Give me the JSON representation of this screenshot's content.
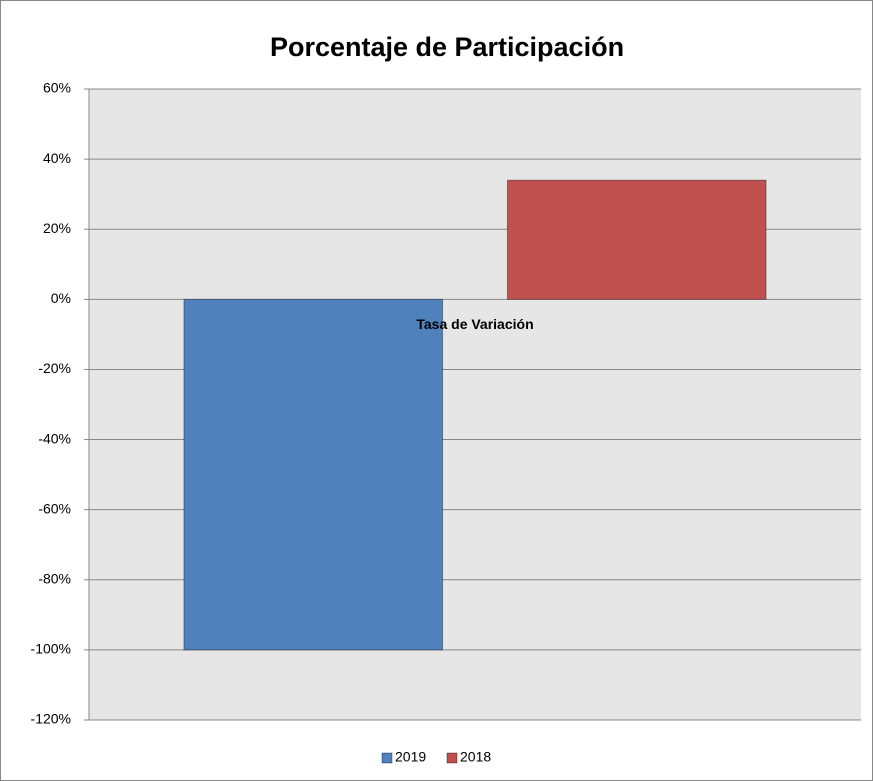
{
  "chart_data": {
    "type": "bar",
    "title": "Porcentaje de Participación",
    "categories": [
      "Tasa de Variación"
    ],
    "series": [
      {
        "name": "2019",
        "color": "#4f81bd",
        "values": [
          -100
        ]
      },
      {
        "name": "2018",
        "color": "#c0504d",
        "values": [
          34
        ]
      }
    ],
    "ylim": [
      -120,
      60
    ],
    "yticks": [
      {
        "value": -120,
        "label": "-120%"
      },
      {
        "value": -100,
        "label": "-100%"
      },
      {
        "value": -80,
        "label": "-80%"
      },
      {
        "value": -60,
        "label": "-60%"
      },
      {
        "value": -40,
        "label": "-40%"
      },
      {
        "value": -20,
        "label": "-20%"
      },
      {
        "value": 0,
        "label": "0%"
      },
      {
        "value": 20,
        "label": "20%"
      },
      {
        "value": 40,
        "label": "40%"
      },
      {
        "value": 60,
        "label": "60%"
      }
    ],
    "grid": true,
    "legend": "bottom"
  }
}
